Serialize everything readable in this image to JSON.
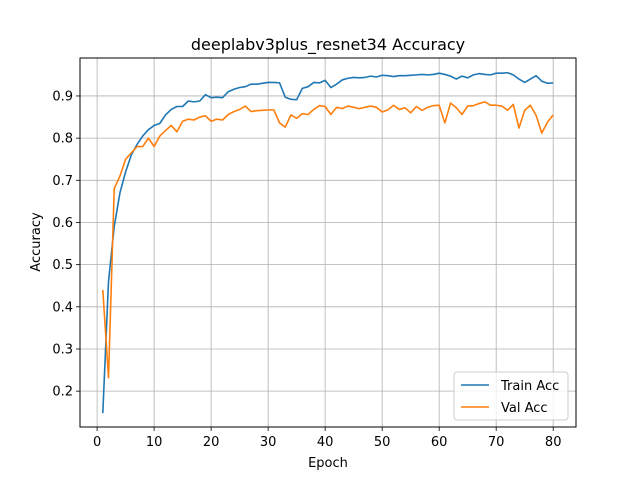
{
  "chart_data": {
    "type": "line",
    "title": "deeplabv3plus_resnet34 Accuracy",
    "xlabel": "Epoch",
    "ylabel": "Accuracy",
    "xlim": [
      -3,
      84
    ],
    "ylim": [
      0.115,
      0.99
    ],
    "xticks": [
      0,
      10,
      20,
      30,
      40,
      50,
      60,
      70,
      80
    ],
    "yticks": [
      0.2,
      0.3,
      0.4,
      0.5,
      0.6,
      0.7,
      0.8,
      0.9
    ],
    "ytick_labels": [
      "0.2",
      "0.3",
      "0.4",
      "0.5",
      "0.6",
      "0.7",
      "0.8",
      "0.9"
    ],
    "grid": true,
    "legend_position": "lower-right",
    "x": [
      1,
      2,
      3,
      4,
      5,
      6,
      7,
      8,
      9,
      10,
      11,
      12,
      13,
      14,
      15,
      16,
      17,
      18,
      19,
      20,
      21,
      22,
      23,
      24,
      25,
      26,
      27,
      28,
      29,
      30,
      31,
      32,
      33,
      34,
      35,
      36,
      37,
      38,
      39,
      40,
      41,
      42,
      43,
      44,
      45,
      46,
      47,
      48,
      49,
      50,
      51,
      52,
      53,
      54,
      55,
      56,
      57,
      58,
      59,
      60,
      61,
      62,
      63,
      64,
      65,
      66,
      67,
      68,
      69,
      70,
      71,
      72,
      73,
      74,
      75,
      76,
      77,
      78,
      79,
      80
    ],
    "series": [
      {
        "name": "Train Acc",
        "color": "#1f77b4",
        "values": [
          0.148,
          0.46,
          0.59,
          0.67,
          0.72,
          0.76,
          0.785,
          0.805,
          0.82,
          0.83,
          0.835,
          0.855,
          0.868,
          0.875,
          0.875,
          0.888,
          0.886,
          0.888,
          0.903,
          0.896,
          0.897,
          0.896,
          0.91,
          0.916,
          0.92,
          0.922,
          0.928,
          0.928,
          0.93,
          0.932,
          0.932,
          0.931,
          0.897,
          0.892,
          0.891,
          0.918,
          0.922,
          0.932,
          0.931,
          0.937,
          0.92,
          0.928,
          0.938,
          0.942,
          0.944,
          0.943,
          0.944,
          0.947,
          0.945,
          0.949,
          0.948,
          0.946,
          0.948,
          0.948,
          0.949,
          0.95,
          0.951,
          0.95,
          0.951,
          0.954,
          0.951,
          0.947,
          0.94,
          0.947,
          0.943,
          0.95,
          0.953,
          0.951,
          0.95,
          0.954,
          0.954,
          0.955,
          0.95,
          0.94,
          0.932,
          0.94,
          0.948,
          0.935,
          0.93,
          0.931
        ]
      },
      {
        "name": "Val Acc",
        "color": "#ff7f0e",
        "values": [
          0.44,
          0.232,
          0.68,
          0.71,
          0.75,
          0.765,
          0.78,
          0.78,
          0.8,
          0.78,
          0.805,
          0.818,
          0.83,
          0.815,
          0.84,
          0.845,
          0.843,
          0.85,
          0.853,
          0.84,
          0.845,
          0.843,
          0.856,
          0.863,
          0.868,
          0.876,
          0.863,
          0.865,
          0.866,
          0.867,
          0.867,
          0.836,
          0.826,
          0.855,
          0.847,
          0.858,
          0.856,
          0.868,
          0.877,
          0.875,
          0.856,
          0.873,
          0.87,
          0.876,
          0.873,
          0.87,
          0.873,
          0.876,
          0.873,
          0.862,
          0.867,
          0.878,
          0.868,
          0.872,
          0.86,
          0.875,
          0.866,
          0.873,
          0.877,
          0.878,
          0.836,
          0.883,
          0.872,
          0.856,
          0.876,
          0.877,
          0.882,
          0.886,
          0.878,
          0.878,
          0.876,
          0.866,
          0.88,
          0.824,
          0.866,
          0.878,
          0.854,
          0.812,
          0.838,
          0.855
        ]
      }
    ]
  }
}
